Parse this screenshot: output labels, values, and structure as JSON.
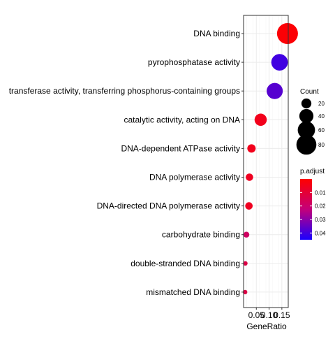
{
  "chart_data": {
    "type": "scatter",
    "xlabel": "GeneRatio",
    "ylabel": "",
    "x_ticks": [
      0.05,
      0.1,
      0.15
    ],
    "x_tick_labels": [
      "0.05",
      "0.10",
      "0.15"
    ],
    "xlim": [
      0.0,
      0.175
    ],
    "grid": true,
    "legend_position": "right",
    "categories": [
      "DNA binding",
      "pyrophosphatase activity",
      "transferase activity, transferring phosphorus-containing groups",
      "catalytic activity, acting on DNA",
      "DNA-dependent ATPase activity",
      "DNA polymerase activity",
      "DNA-directed DNA polymerase activity",
      "carbohydrate binding",
      "double-stranded DNA binding",
      "mismatched DNA binding"
    ],
    "points": [
      {
        "term": "DNA binding",
        "gene_ratio": 0.172,
        "count": 88,
        "p_adjust": 0.001
      },
      {
        "term": "pyrophosphatase activity",
        "gene_ratio": 0.141,
        "count": 55,
        "p_adjust": 0.04
      },
      {
        "term": "transferase activity, transferring phosphorus-containing groups",
        "gene_ratio": 0.122,
        "count": 52,
        "p_adjust": 0.037
      },
      {
        "term": "catalytic activity, acting on DNA",
        "gene_ratio": 0.067,
        "count": 30,
        "p_adjust": 0.005
      },
      {
        "term": "DNA-dependent ATPase activity",
        "gene_ratio": 0.031,
        "count": 14,
        "p_adjust": 0.005
      },
      {
        "term": "DNA polymerase activity",
        "gene_ratio": 0.023,
        "count": 11,
        "p_adjust": 0.006
      },
      {
        "term": "DNA-directed DNA polymerase activity",
        "gene_ratio": 0.021,
        "count": 11,
        "p_adjust": 0.006
      },
      {
        "term": "carbohydrate binding",
        "gene_ratio": 0.011,
        "count": 7,
        "p_adjust": 0.018
      },
      {
        "term": "double-stranded DNA binding",
        "gene_ratio": 0.007,
        "count": 4,
        "p_adjust": 0.013
      },
      {
        "term": "mismatched DNA binding",
        "gene_ratio": 0.006,
        "count": 4,
        "p_adjust": 0.013
      }
    ],
    "size_legend": {
      "title": "Count",
      "values": [
        20,
        40,
        60,
        80
      ],
      "labels": [
        "20",
        "40",
        "60",
        "80"
      ]
    },
    "color_legend": {
      "title": "p.adjust",
      "range": [
        0.0,
        0.045
      ],
      "ticks": [
        0.01,
        0.02,
        0.03,
        0.04
      ],
      "labels": [
        "0.01",
        "0.02",
        "0.03",
        "0.04"
      ],
      "low_color": "#ff0000",
      "high_color": "#1a00ff"
    }
  }
}
